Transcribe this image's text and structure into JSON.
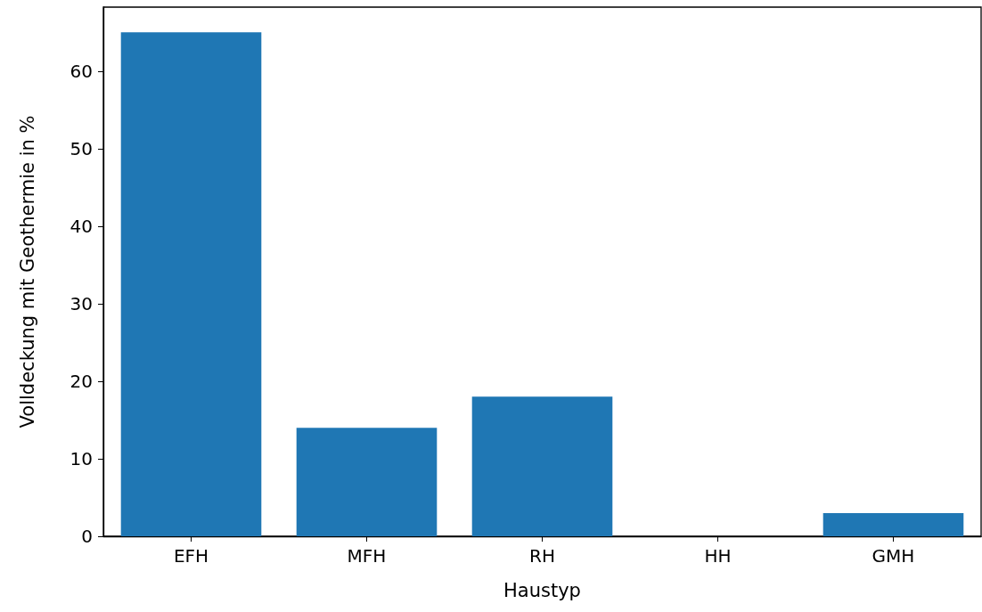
{
  "chart_data": {
    "type": "bar",
    "xlabel": "Haustyp",
    "ylabel": "Volldeckung mit Geothermie in %",
    "categories": [
      "EFH",
      "MFH",
      "RH",
      "HH",
      "GMH"
    ],
    "values": [
      65,
      14,
      18,
      0,
      3
    ],
    "color": "#1f77b4",
    "ylim": [
      0,
      68.25
    ],
    "yticks": [
      0,
      10,
      20,
      30,
      40,
      50,
      60
    ],
    "grid": false
  }
}
